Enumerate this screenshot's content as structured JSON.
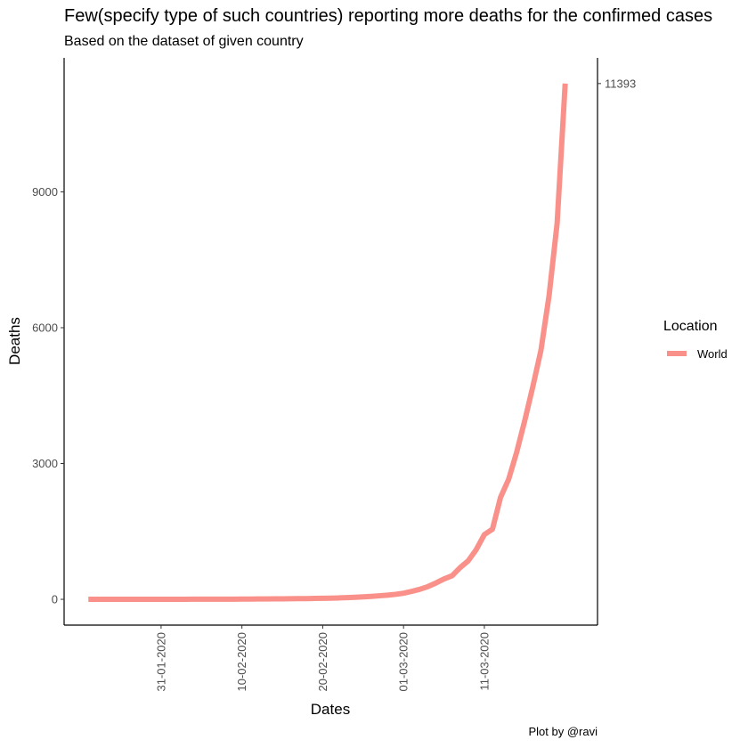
{
  "chart_data": {
    "type": "line",
    "title": "Few(specify type of such countries) reporting more deaths for the confirmed cases",
    "subtitle": "Based on the dataset of given country",
    "xlabel": "Dates",
    "ylabel": "Deaths",
    "caption": "Plot by @ravi",
    "x_ticks": [
      "31-01-2020",
      "10-02-2020",
      "20-02-2020",
      "01-03-2020",
      "11-03-2020"
    ],
    "y_ticks": [
      0,
      3000,
      6000,
      9000
    ],
    "ylim": [
      -570,
      11960
    ],
    "xlim": [
      "2020-01-19",
      "2020-03-25"
    ],
    "secondary_y_label": "11393",
    "grid": false,
    "legend": {
      "title": "Location",
      "position": "right",
      "entries": [
        "World"
      ]
    },
    "series": [
      {
        "name": "World",
        "color": "#f8766d",
        "x": [
          "2020-01-22",
          "2020-01-23",
          "2020-01-24",
          "2020-01-25",
          "2020-01-26",
          "2020-01-27",
          "2020-01-28",
          "2020-01-29",
          "2020-01-30",
          "2020-01-31",
          "2020-02-01",
          "2020-02-02",
          "2020-02-03",
          "2020-02-04",
          "2020-02-05",
          "2020-02-06",
          "2020-02-07",
          "2020-02-08",
          "2020-02-09",
          "2020-02-10",
          "2020-02-11",
          "2020-02-12",
          "2020-02-13",
          "2020-02-14",
          "2020-02-15",
          "2020-02-16",
          "2020-02-17",
          "2020-02-18",
          "2020-02-19",
          "2020-02-20",
          "2020-02-21",
          "2020-02-22",
          "2020-02-23",
          "2020-02-24",
          "2020-02-25",
          "2020-02-26",
          "2020-02-27",
          "2020-02-28",
          "2020-02-29",
          "2020-03-01",
          "2020-03-02",
          "2020-03-03",
          "2020-03-04",
          "2020-03-05",
          "2020-03-06",
          "2020-03-07",
          "2020-03-08",
          "2020-03-09",
          "2020-03-10",
          "2020-03-11",
          "2020-03-12",
          "2020-03-13",
          "2020-03-14",
          "2020-03-15",
          "2020-03-16",
          "2020-03-17",
          "2020-03-18",
          "2020-03-19",
          "2020-03-20",
          "2020-03-21"
        ],
        "y": [
          0,
          0,
          0,
          0,
          0,
          0,
          0,
          0,
          0,
          0,
          1,
          1,
          1,
          2,
          2,
          3,
          3,
          4,
          4,
          5,
          6,
          7,
          8,
          9,
          10,
          12,
          14,
          16,
          19,
          22,
          26,
          31,
          37,
          45,
          55,
          65,
          78,
          92,
          110,
          135,
          175,
          220,
          280,
          360,
          450,
          520,
          700,
          850,
          1100,
          1430,
          1550,
          2250,
          2650,
          3250,
          3950,
          4700,
          5500,
          6700,
          8300,
          11393
        ]
      }
    ]
  }
}
